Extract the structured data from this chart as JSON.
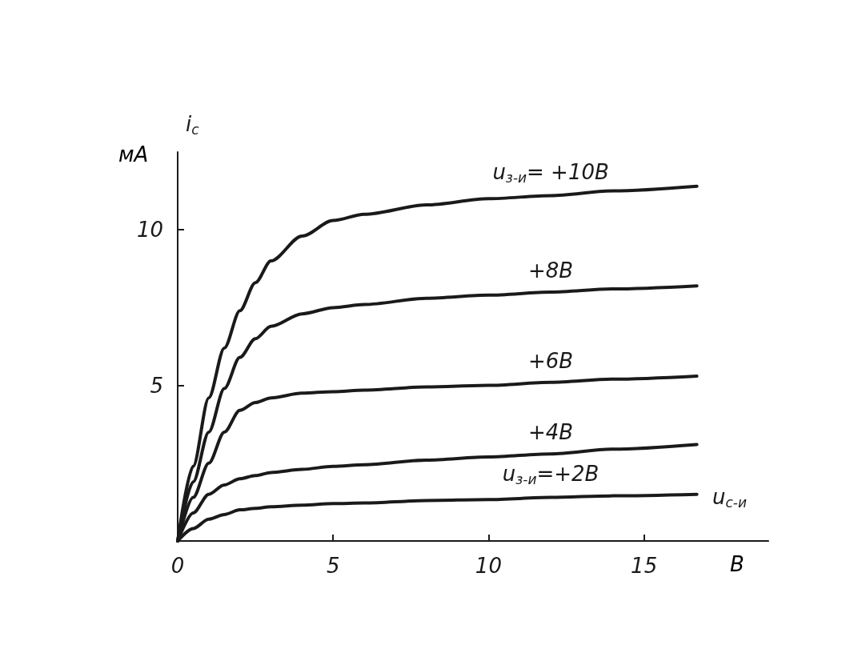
{
  "chart_data": {
    "type": "line",
    "xlabel": "u$_{с-и}$",
    "ylabel": "i$_{с}$",
    "annotations": [
      "мА",
      "В"
    ],
    "x": [
      0,
      0.5,
      1,
      1.5,
      2,
      2.5,
      3,
      4,
      5,
      6,
      8,
      10,
      12,
      14,
      16.7
    ],
    "series": [
      {
        "name": "u$_{з-и}$= +10В",
        "color": "#1a1a1a",
        "values": [
          0,
          2.4,
          4.6,
          6.2,
          7.4,
          8.3,
          9.0,
          9.8,
          10.3,
          10.5,
          10.8,
          11.0,
          11.1,
          11.25,
          11.4
        ]
      },
      {
        "name": "+8В",
        "color": "#1a1a1a",
        "values": [
          0,
          1.9,
          3.5,
          4.9,
          5.9,
          6.5,
          6.9,
          7.3,
          7.5,
          7.6,
          7.8,
          7.9,
          8.0,
          8.1,
          8.2
        ]
      },
      {
        "name": "+6В",
        "color": "#1a1a1a",
        "values": [
          0,
          1.4,
          2.5,
          3.5,
          4.2,
          4.45,
          4.6,
          4.75,
          4.8,
          4.85,
          4.95,
          5.0,
          5.1,
          5.2,
          5.3
        ]
      },
      {
        "name": "+4В",
        "color": "#1a1a1a",
        "values": [
          0,
          0.9,
          1.5,
          1.8,
          2.0,
          2.1,
          2.2,
          2.3,
          2.4,
          2.45,
          2.6,
          2.7,
          2.8,
          2.95,
          3.1
        ]
      },
      {
        "name": "u$_{з-и}$=+2В",
        "color": "#1a1a1a",
        "values": [
          0,
          0.4,
          0.7,
          0.85,
          1.0,
          1.05,
          1.1,
          1.15,
          1.2,
          1.22,
          1.3,
          1.33,
          1.4,
          1.45,
          1.5
        ]
      }
    ],
    "xlim": [
      0,
      19
    ],
    "ylim": [
      0,
      12.5
    ],
    "xticks": [
      0,
      5,
      10,
      15
    ],
    "yticks": [
      5,
      10
    ],
    "grid": false,
    "legend": false,
    "marker": "none",
    "line_style": "solid"
  }
}
